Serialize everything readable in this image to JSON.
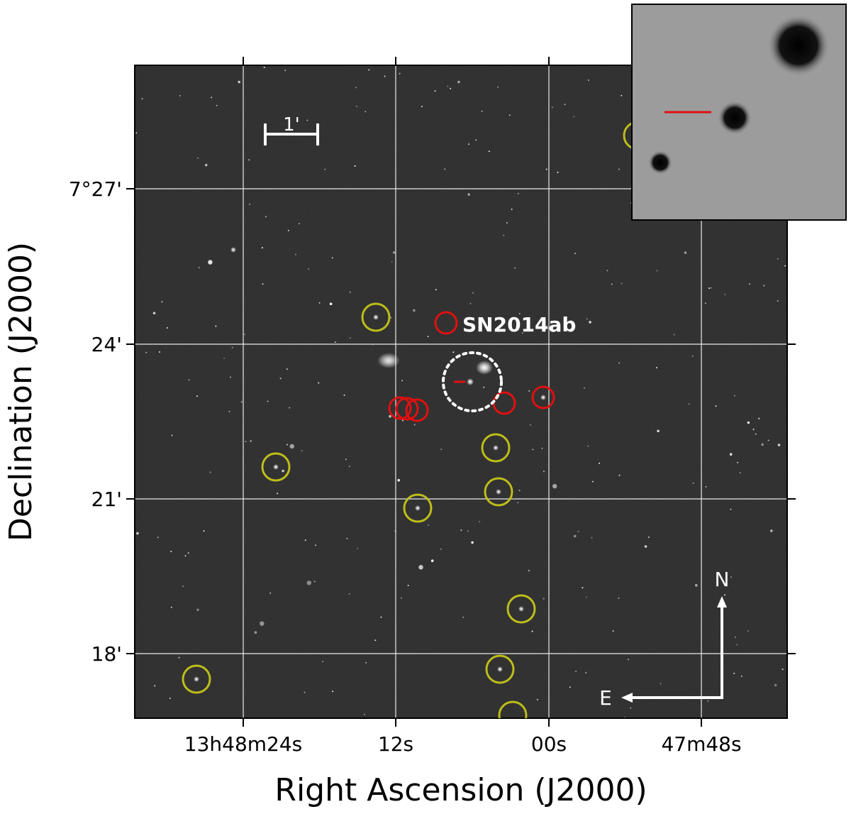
{
  "axes": {
    "x_title": "Right Ascension (J2000)",
    "y_title": "Declination (J2000)",
    "x_ticks": [
      "13h48m24s",
      "12s",
      "00s",
      "47m48s"
    ],
    "y_ticks": [
      "7°27'",
      "24'",
      "21'",
      "18'"
    ]
  },
  "annotations": {
    "supernova_label": "SN2014ab",
    "scale_bar_label": "1'",
    "north_label": "N",
    "east_label": "E"
  },
  "marker_counts": {
    "yellow_circles": 12,
    "red_circles": 6
  },
  "colors": {
    "sky_background": "#1c1c1c",
    "grid": "#ffffff",
    "yellow_marker": "#bdbd1a",
    "red_marker": "#e01010",
    "inset_background": "#9c9c9c",
    "text_on_image": "#ffffff"
  },
  "inset": {
    "description_marker": "red-line-pointer"
  }
}
